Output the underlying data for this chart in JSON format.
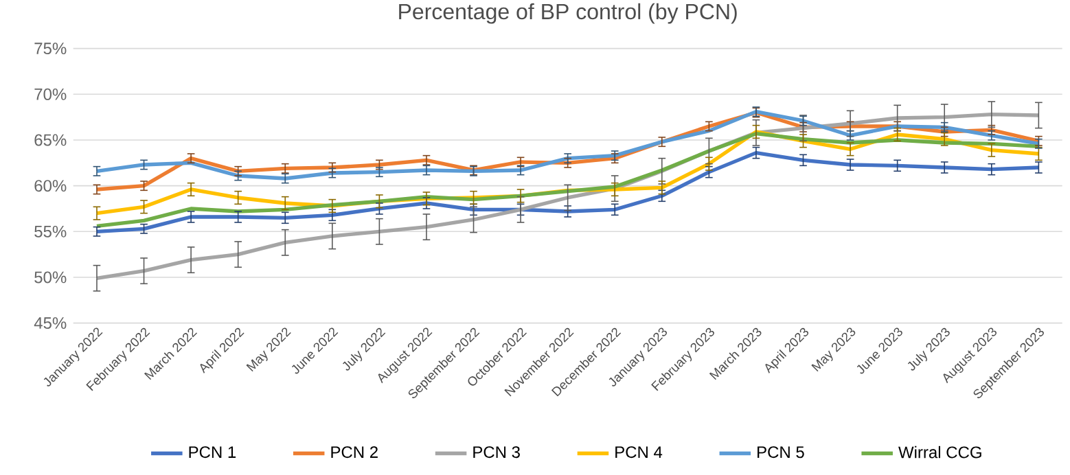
{
  "chart_data": {
    "type": "line",
    "title": "Percentage of BP control (by PCN)",
    "categories": [
      "January 2022",
      "February 2022",
      "March 2022",
      "April 2022",
      "May 2022",
      "June 2022",
      "July 2022",
      "August 2022",
      "September 2022",
      "October 2022",
      "November 2022",
      "December 2022",
      "January 2023",
      "February 2023",
      "March 2023",
      "April 2023",
      "May 2023",
      "June 2023",
      "July 2023",
      "August 2023",
      "September 2023"
    ],
    "ylim": [
      45,
      75
    ],
    "yticks": [
      {
        "value": 45,
        "label": "45%"
      },
      {
        "value": 50,
        "label": "50%"
      },
      {
        "value": 55,
        "label": "55%"
      },
      {
        "value": 60,
        "label": "60%"
      },
      {
        "value": 65,
        "label": "65%"
      },
      {
        "value": 70,
        "label": "70%"
      },
      {
        "value": 75,
        "label": "75%"
      }
    ],
    "grid": "y",
    "legend": "bottom",
    "marker": "none",
    "line_style": "solid",
    "series": [
      {
        "name": "PCN 1",
        "color": "#4472c4",
        "values": [
          55.0,
          55.3,
          56.6,
          56.6,
          56.5,
          56.8,
          57.5,
          58.1,
          57.4,
          57.4,
          57.2,
          57.4,
          58.9,
          61.5,
          63.6,
          62.8,
          62.3,
          62.2,
          62.0,
          61.8,
          62.0
        ],
        "errors": [
          0.5,
          0.5,
          0.6,
          0.6,
          0.6,
          0.6,
          0.6,
          0.6,
          0.6,
          0.6,
          0.6,
          0.6,
          0.6,
          0.6,
          0.6,
          0.6,
          0.6,
          0.6,
          0.6,
          0.6,
          0.6
        ]
      },
      {
        "name": "PCN 2",
        "color": "#ed7d31",
        "values": [
          59.6,
          60.0,
          63.0,
          61.6,
          61.9,
          62.0,
          62.3,
          62.8,
          61.7,
          62.6,
          62.5,
          63.0,
          64.8,
          66.5,
          68.0,
          66.4,
          66.5,
          66.5,
          65.9,
          66.1,
          64.9
        ],
        "errors": [
          0.5,
          0.5,
          0.5,
          0.5,
          0.5,
          0.5,
          0.5,
          0.5,
          0.5,
          0.5,
          0.5,
          0.5,
          0.5,
          0.5,
          0.5,
          0.5,
          0.5,
          0.5,
          0.5,
          0.5,
          0.5
        ]
      },
      {
        "name": "PCN 3",
        "color": "#a5a5a5",
        "values": [
          49.9,
          50.7,
          51.9,
          52.5,
          53.8,
          54.5,
          55.0,
          55.5,
          56.3,
          57.4,
          58.7,
          59.7,
          61.6,
          63.8,
          65.8,
          66.3,
          66.8,
          67.4,
          67.5,
          67.8,
          67.7
        ],
        "errors": [
          1.4,
          1.4,
          1.4,
          1.4,
          1.4,
          1.4,
          1.4,
          1.4,
          1.4,
          1.4,
          1.4,
          1.4,
          1.4,
          1.4,
          1.4,
          1.4,
          1.4,
          1.4,
          1.4,
          1.4,
          1.4
        ]
      },
      {
        "name": "PCN 4",
        "color": "#ffc000",
        "values": [
          57.0,
          57.7,
          59.6,
          58.7,
          58.1,
          57.8,
          58.3,
          58.6,
          58.7,
          58.9,
          59.5,
          59.6,
          59.8,
          62.4,
          65.9,
          64.9,
          64.0,
          65.6,
          65.1,
          63.9,
          63.5
        ],
        "errors": [
          0.7,
          0.7,
          0.7,
          0.7,
          0.7,
          0.7,
          0.7,
          0.7,
          0.7,
          0.7,
          null,
          0.7,
          0.7,
          0.7,
          0.7,
          0.7,
          0.7,
          0.7,
          0.7,
          0.7,
          0.7
        ]
      },
      {
        "name": "PCN 5",
        "color": "#5b9bd5",
        "values": [
          61.6,
          62.3,
          62.5,
          61.1,
          60.8,
          61.4,
          61.5,
          61.7,
          61.6,
          61.7,
          63.0,
          63.3,
          64.8,
          66.0,
          68.1,
          67.1,
          65.5,
          66.5,
          66.4,
          65.5,
          64.6
        ],
        "errors": [
          0.5,
          0.5,
          null,
          0.5,
          0.5,
          0.5,
          0.5,
          0.5,
          0.5,
          0.5,
          0.5,
          0.5,
          null,
          null,
          0.5,
          0.5,
          0.5,
          null,
          0.5,
          0.5,
          0.5
        ]
      },
      {
        "name": "Wirral CCG",
        "color": "#70ad47",
        "values": [
          55.6,
          56.2,
          57.5,
          57.2,
          57.4,
          57.9,
          58.3,
          58.8,
          58.5,
          58.9,
          59.4,
          59.9,
          61.7,
          63.8,
          65.7,
          65.1,
          64.7,
          65.0,
          64.7,
          64.6,
          64.3
        ]
      }
    ]
  }
}
